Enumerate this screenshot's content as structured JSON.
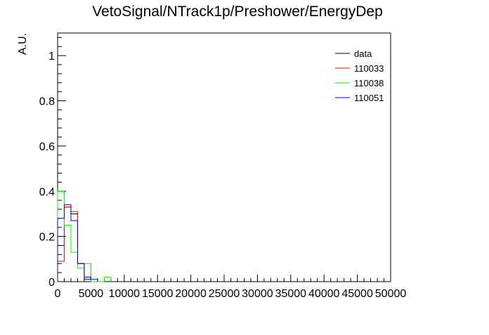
{
  "chart_data": {
    "type": "histogram",
    "title": "VetoSignal/NTrack1p/Preshower/EnergyDep",
    "xlabel": "",
    "ylabel": "A.U.",
    "xlim": [
      0,
      50000
    ],
    "ylim": [
      0,
      1.1
    ],
    "x_ticks": [
      "0",
      "5000",
      "10000",
      "15000",
      "20000",
      "25000",
      "30000",
      "35000",
      "40000",
      "45000",
      "50000"
    ],
    "y_ticks": [
      "0",
      "0.2",
      "0.4",
      "0.6",
      "0.8",
      "1"
    ],
    "bin_width": 1000,
    "grid": false,
    "legend_position": "top-right",
    "legend": [
      "data",
      "110033",
      "110038",
      "110051"
    ],
    "series": [
      {
        "name": "data",
        "color": "#000000",
        "bins": [
          [
            0,
            0.16
          ],
          [
            1000,
            0.33
          ],
          [
            2000,
            0.3
          ],
          [
            3000,
            0.08
          ],
          [
            4000,
            0.01
          ]
        ]
      },
      {
        "name": "110033",
        "color": "#ff0000",
        "bins": [
          [
            0,
            0.09
          ],
          [
            1000,
            0.33
          ],
          [
            2000,
            0.31
          ],
          [
            3000,
            0.08
          ],
          [
            4000,
            0.02
          ]
        ]
      },
      {
        "name": "110038",
        "color": "#00ff00",
        "bins": [
          [
            0,
            0.4
          ],
          [
            1000,
            0.25
          ],
          [
            2000,
            0.13
          ],
          [
            3000,
            0.06
          ],
          [
            4000,
            0.08
          ],
          [
            7000,
            0.02
          ]
        ]
      },
      {
        "name": "110051",
        "color": "#0000ff",
        "bins": [
          [
            0,
            0.28
          ],
          [
            1000,
            0.34
          ],
          [
            2000,
            0.27
          ],
          [
            3000,
            0.08
          ],
          [
            4000,
            0.02
          ],
          [
            5000,
            0.01
          ]
        ]
      }
    ]
  }
}
